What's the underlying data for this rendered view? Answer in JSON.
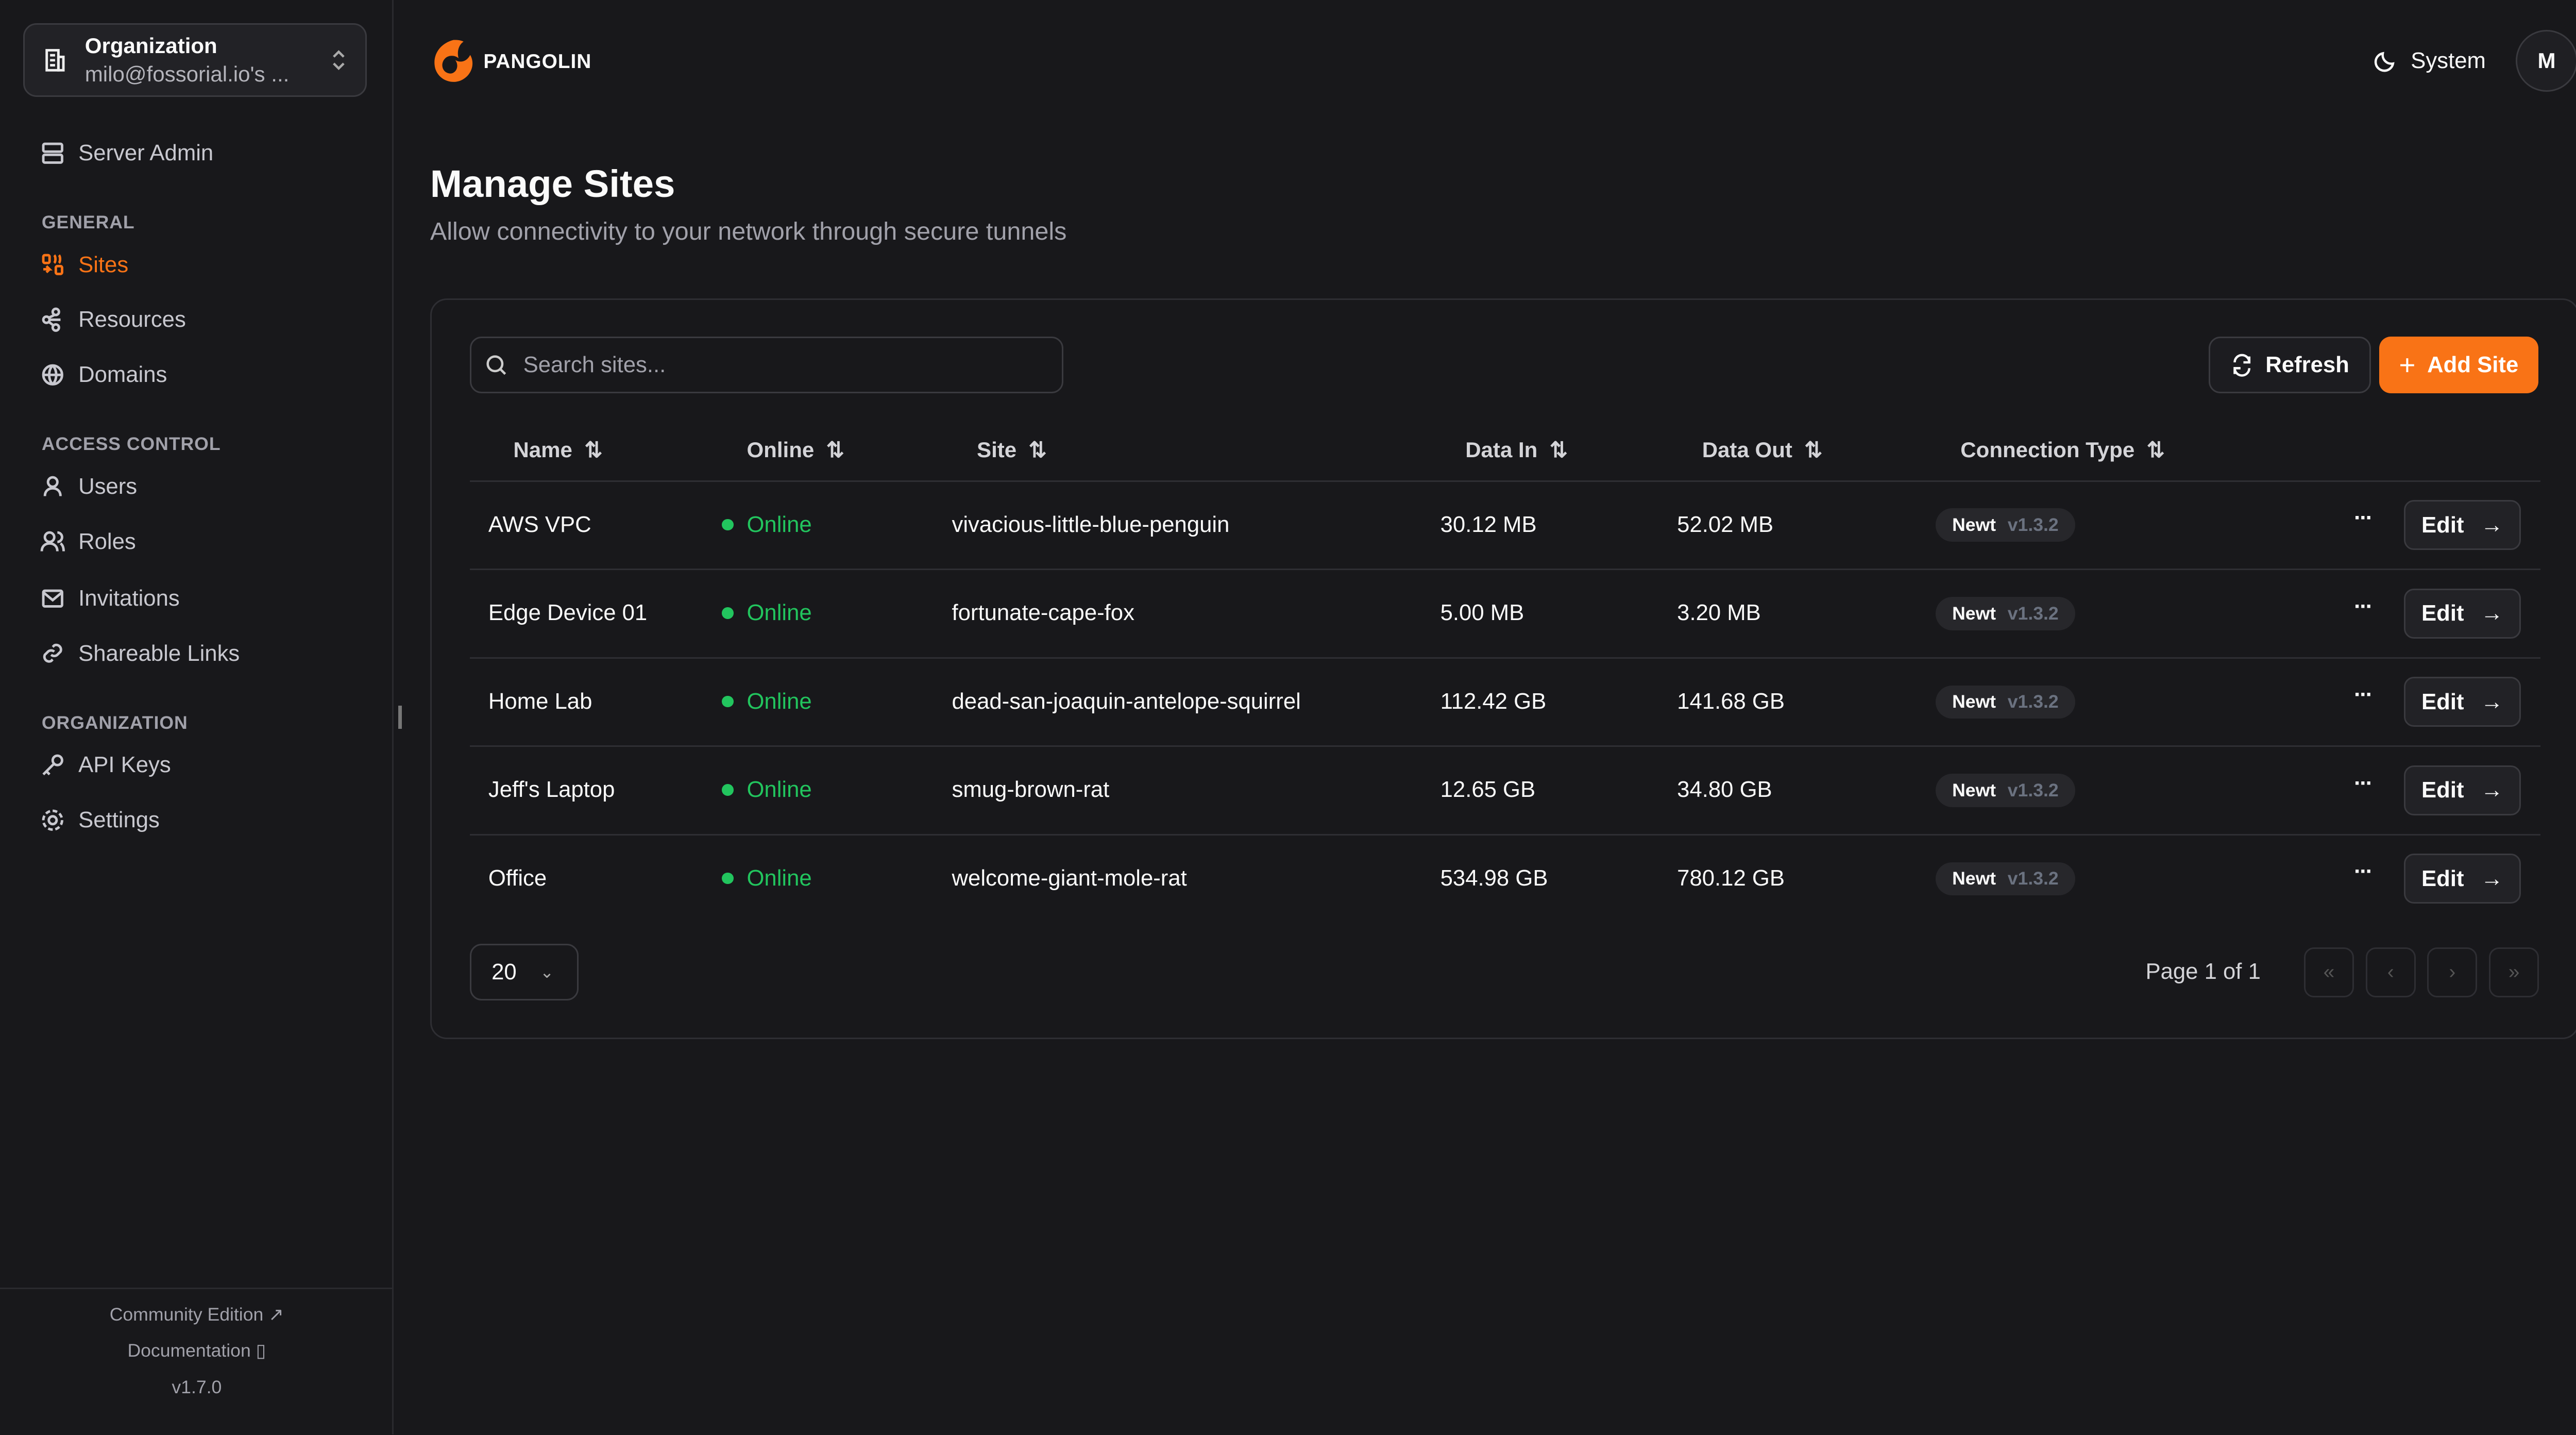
{
  "sidebar": {
    "org_title": "Organization",
    "org_name": "milo@fossorial.io's ...",
    "server_admin": "Server Admin",
    "sections": {
      "general": "GENERAL",
      "access": "ACCESS CONTROL",
      "organization": "ORGANIZATION"
    },
    "items": {
      "sites": "Sites",
      "resources": "Resources",
      "domains": "Domains",
      "users": "Users",
      "roles": "Roles",
      "invitations": "Invitations",
      "shareable_links": "Shareable Links",
      "api_keys": "API Keys",
      "settings": "Settings"
    },
    "footer": {
      "community": "Community Edition",
      "docs": "Documentation",
      "version": "v1.7.0"
    }
  },
  "header": {
    "brand": "PANGOLIN",
    "theme": "System",
    "avatar": "M"
  },
  "page": {
    "title": "Manage Sites",
    "subtitle": "Allow connectivity to your network through secure tunnels"
  },
  "toolbar": {
    "search_placeholder": "Search sites...",
    "refresh": "Refresh",
    "add": "Add Site"
  },
  "table": {
    "columns": [
      "Name",
      "Online",
      "Site",
      "Data In",
      "Data Out",
      "Connection Type"
    ],
    "rows": [
      {
        "name": "AWS VPC",
        "online": "Online",
        "site": "vivacious-little-blue-penguin",
        "in": "30.12 MB",
        "out": "52.02 MB",
        "type": "Newt",
        "version": "v1.3.2",
        "edit": "Edit"
      },
      {
        "name": "Edge Device 01",
        "online": "Online",
        "site": "fortunate-cape-fox",
        "in": "5.00 MB",
        "out": "3.20 MB",
        "type": "Newt",
        "version": "v1.3.2",
        "edit": "Edit"
      },
      {
        "name": "Home Lab",
        "online": "Online",
        "site": "dead-san-joaquin-antelope-squirrel",
        "in": "112.42 GB",
        "out": "141.68 GB",
        "type": "Newt",
        "version": "v1.3.2",
        "edit": "Edit"
      },
      {
        "name": "Jeff's Laptop",
        "online": "Online",
        "site": "smug-brown-rat",
        "in": "12.65 GB",
        "out": "34.80 GB",
        "type": "Newt",
        "version": "v1.3.2",
        "edit": "Edit"
      },
      {
        "name": "Office",
        "online": "Online",
        "site": "welcome-giant-mole-rat",
        "in": "534.98 GB",
        "out": "780.12 GB",
        "type": "Newt",
        "version": "v1.3.2",
        "edit": "Edit"
      }
    ]
  },
  "pagination": {
    "page_size": "20",
    "page_info": "Page 1 of 1"
  },
  "colors": {
    "accent": "#f97316",
    "online": "#22c55e",
    "background": "#18181b"
  }
}
